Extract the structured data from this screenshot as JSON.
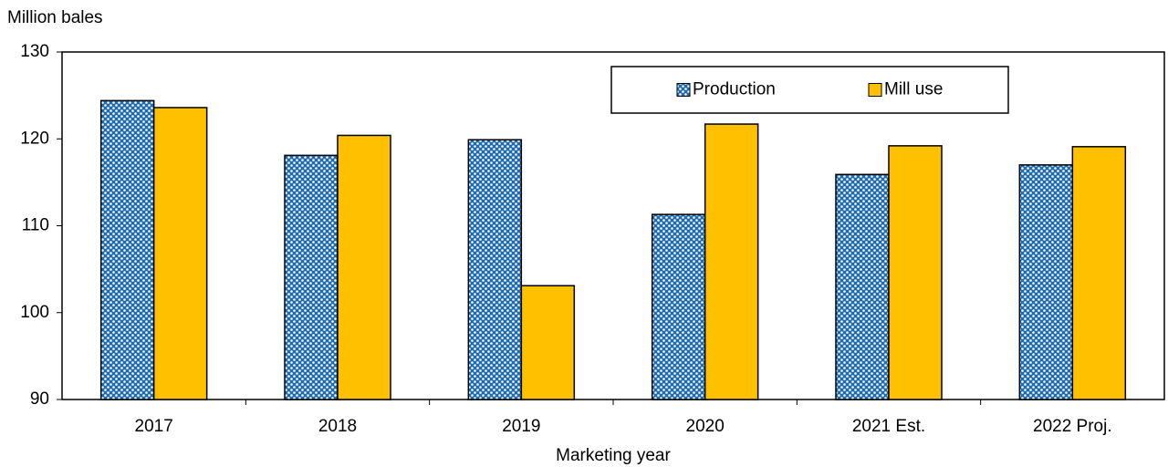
{
  "chart_data": {
    "type": "bar",
    "y_axis_label": "Million bales",
    "x_axis_label": "Marketing year",
    "categories": [
      "2017",
      "2018",
      "2019",
      "2020",
      "2021 Est.",
      "2022 Proj."
    ],
    "series": [
      {
        "name": "Production",
        "color": "#1f6bb0",
        "pattern": "dots",
        "values": [
          124.4,
          118.1,
          119.9,
          111.3,
          115.9,
          117.0
        ]
      },
      {
        "name": "Mill use",
        "color": "#ffc000",
        "values": [
          123.6,
          120.4,
          103.1,
          121.7,
          119.2,
          119.1
        ]
      }
    ],
    "ylim": [
      90,
      130
    ],
    "yticks": [
      90,
      100,
      110,
      120,
      130
    ],
    "grid": false,
    "legend": "top-right"
  }
}
